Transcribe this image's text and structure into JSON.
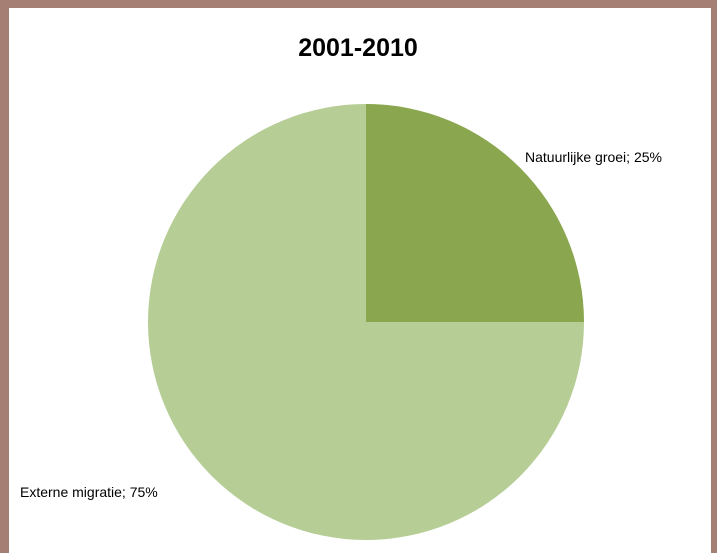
{
  "chart_data": {
    "type": "pie",
    "title": "2001-2010",
    "slices": [
      {
        "label": "Natuurlijke groei",
        "value": 25,
        "display_label": "Natuurlijke groei; 25%",
        "color": "#8aa64e"
      },
      {
        "label": "Externe migratie",
        "value": 75,
        "display_label": "Externe migratie; 75%",
        "color": "#b6cd95"
      }
    ],
    "start_angle": "12 o'clock",
    "direction": "clockwise",
    "legend": "none"
  },
  "colors": {
    "frame_background": "#a57f74",
    "chart_background": "#ffffff"
  }
}
